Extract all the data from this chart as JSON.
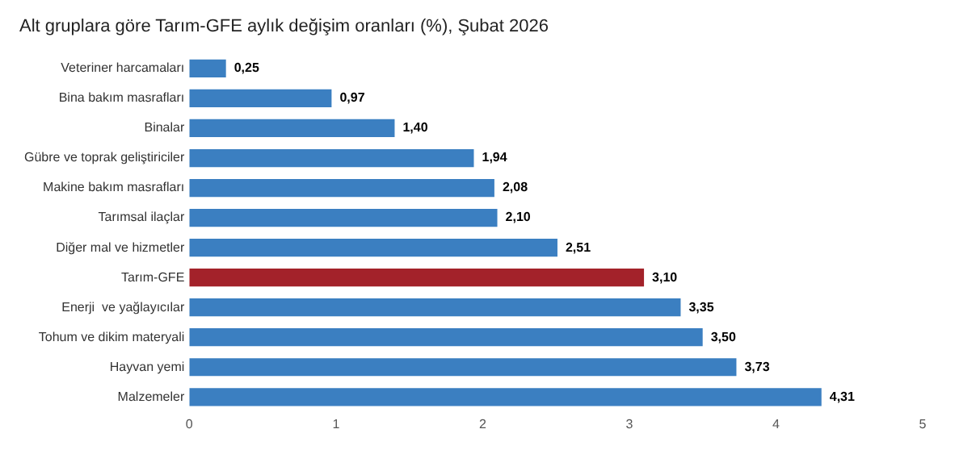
{
  "chart_data": {
    "type": "bar",
    "orientation": "horizontal",
    "title": "Alt gruplara göre Tarım-GFE aylık değişim oranları (%), Şubat 2026",
    "categories": [
      "Veteriner harcamaları",
      "Bina bakım masrafları",
      "Binalar",
      "Gübre ve toprak geliştiriciler",
      "Makine bakım masrafları",
      "Tarımsal ilaçlar",
      "Diğer mal ve hizmetler",
      "Tarım-GFE",
      "Enerji  ve yağlayıcılar",
      "Tohum ve dikim materyali",
      "Hayvan yemi",
      "Malzemeler"
    ],
    "values": [
      0.25,
      0.97,
      1.4,
      1.94,
      2.08,
      2.1,
      2.51,
      3.1,
      3.35,
      3.5,
      3.73,
      4.31
    ],
    "value_labels": [
      "0,25",
      "0,97",
      "1,40",
      "1,94",
      "2,08",
      "2,10",
      "2,51",
      "3,10",
      "3,35",
      "3,50",
      "3,73",
      "4,31"
    ],
    "colors": [
      "#3b7fc1",
      "#3b7fc1",
      "#3b7fc1",
      "#3b7fc1",
      "#3b7fc1",
      "#3b7fc1",
      "#3b7fc1",
      "#a3222a",
      "#3b7fc1",
      "#3b7fc1",
      "#3b7fc1",
      "#3b7fc1"
    ],
    "xlim": [
      0,
      5
    ],
    "xticks": [
      0,
      1,
      2,
      3,
      4,
      5
    ],
    "grid": false,
    "legend": false
  }
}
